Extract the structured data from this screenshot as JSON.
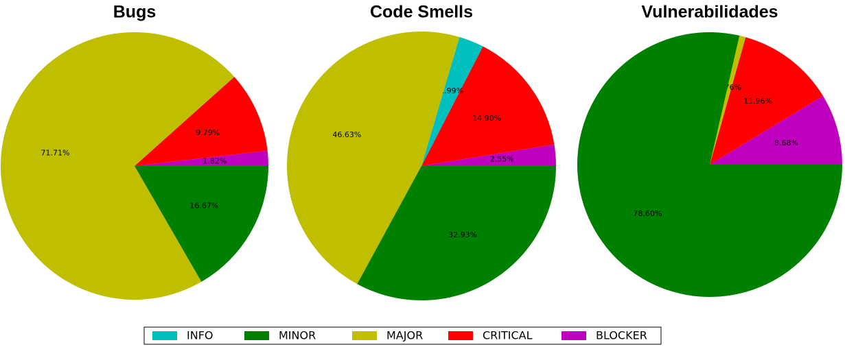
{
  "chart_data": [
    {
      "type": "pie",
      "title": "Bugs",
      "categories": [
        "BLOCKER",
        "CRITICAL",
        "MAJOR",
        "MINOR"
      ],
      "values": [
        1.82,
        9.79,
        71.71,
        16.67
      ],
      "value_labels": [
        "1.82%",
        "9.79%",
        "71.71%",
        "16.67%"
      ],
      "colors": [
        "#bf00bf",
        "#ff0000",
        "#bfbf00",
        "#008000"
      ]
    },
    {
      "type": "pie",
      "title": "Code Smells",
      "categories": [
        "BLOCKER",
        "CRITICAL",
        "INFO",
        "MAJOR",
        "MINOR"
      ],
      "values": [
        2.55,
        14.9,
        2.99,
        46.63,
        32.93
      ],
      "value_labels": [
        "2.55%",
        "14.90%",
        "2.99%",
        "46.63%",
        "32.93%"
      ],
      "colors": [
        "#bf00bf",
        "#ff0000",
        "#00bfbf",
        "#bfbf00",
        "#008000"
      ]
    },
    {
      "type": "pie",
      "title": "Vulnerabilidades",
      "categories": [
        "BLOCKER",
        "CRITICAL",
        "MAJOR",
        "MINOR"
      ],
      "values": [
        8.68,
        11.96,
        0.76,
        78.6
      ],
      "value_labels": [
        "8.68%",
        "11.96%",
        "0.76%",
        "78.60%"
      ],
      "colors": [
        "#bf00bf",
        "#ff0000",
        "#bfbf00",
        "#008000"
      ]
    }
  ],
  "legend": {
    "location": "lower center",
    "entries": [
      {
        "label": "INFO",
        "color": "#00bfbf"
      },
      {
        "label": "MINOR",
        "color": "#008000"
      },
      {
        "label": "MAJOR",
        "color": "#bfbf00"
      },
      {
        "label": "CRITICAL",
        "color": "#ff0000"
      },
      {
        "label": "BLOCKER",
        "color": "#bf00bf"
      }
    ]
  }
}
